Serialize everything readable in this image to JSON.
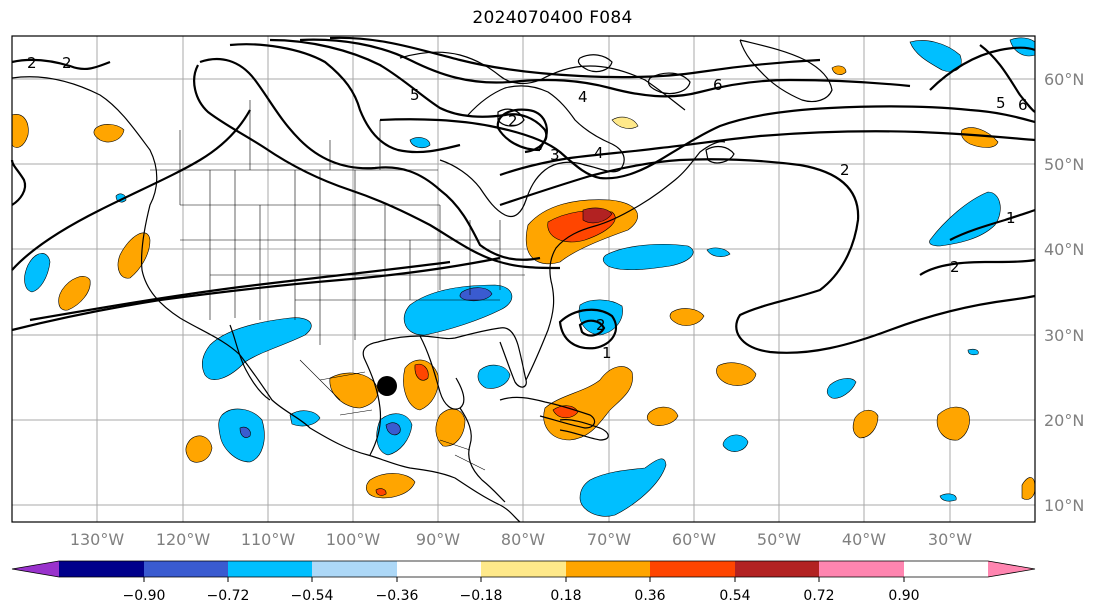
{
  "title": "2024070400 F084",
  "map": {
    "projection": "PlateCarree",
    "lon_range": [
      -140,
      -20
    ],
    "lat_range": [
      8,
      65
    ],
    "lon_ticks": [
      "130°W",
      "120°W",
      "110°W",
      "100°W",
      "90°W",
      "80°W",
      "70°W",
      "60°W",
      "50°W",
      "40°W",
      "30°W"
    ],
    "lat_ticks": [
      "10°N",
      "20°N",
      "30°N",
      "40°N",
      "50°N",
      "60°N"
    ],
    "gridlines": true,
    "marker": {
      "shape": "filled-circle",
      "color": "#000000",
      "lon": -94.5,
      "lat": 23.9
    },
    "contour_labels": [
      "2",
      "2",
      "6",
      "5",
      "4",
      "2",
      "3",
      "4",
      "2",
      "1",
      "2",
      "1",
      "2",
      "5",
      "6"
    ]
  },
  "colorbar": {
    "orientation": "horizontal",
    "extend": "both",
    "tick_labels": [
      "−0.90",
      "−0.72",
      "−0.54",
      "−0.36",
      "−0.18",
      "0.18",
      "0.36",
      "0.54",
      "0.72",
      "0.90"
    ],
    "colors": [
      "#9932cc",
      "#00008b",
      "#3a5bd0",
      "#00bfff",
      "#add8f7",
      "#ffffff",
      "#ffe98a",
      "#ffa500",
      "#ff4500",
      "#b22222",
      "#ff85b0"
    ]
  }
}
